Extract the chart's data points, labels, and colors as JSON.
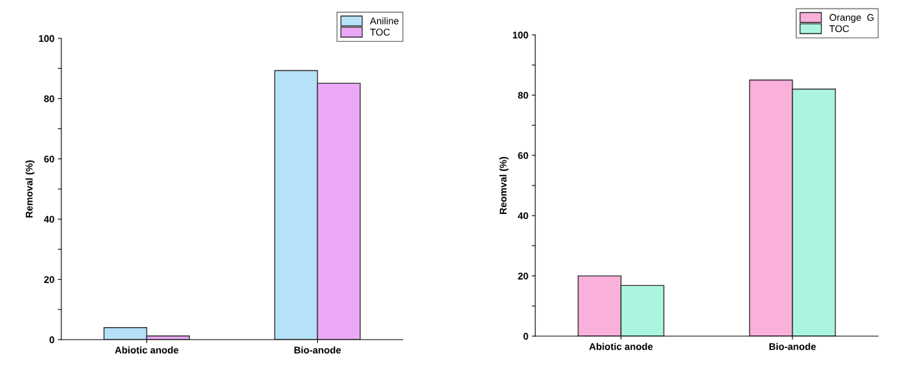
{
  "chart_data": [
    {
      "type": "bar",
      "ylabel": "Removal (%)",
      "categories": [
        "Abiotic anode",
        "Bio-anode"
      ],
      "series": [
        {
          "name": "Aniline",
          "color": "#b5e2f8",
          "values": [
            4.0,
            89.3
          ]
        },
        {
          "name": "TOC",
          "color": "#eaa8f6",
          "values": [
            1.2,
            85.1
          ]
        }
      ],
      "ylim": [
        0,
        100
      ],
      "yticks": [
        0,
        {
          "value": 10,
          "label": null
        },
        20,
        {
          "value": 30,
          "label": null
        },
        40,
        {
          "value": 50,
          "label": null
        },
        60,
        {
          "value": 70,
          "label": null
        },
        80,
        {
          "value": 90,
          "label": null
        },
        100
      ],
      "grid": false,
      "legend": "top right"
    },
    {
      "type": "bar",
      "ylabel": "Reomval (%)",
      "categories": [
        "Abiotic anode",
        "Bio-anode"
      ],
      "series": [
        {
          "name": "Orange  G",
          "color": "#f9b0da",
          "values": [
            20.0,
            85.0
          ]
        },
        {
          "name": "TOC",
          "color": "#abf5e0",
          "values": [
            16.8,
            82.0
          ]
        }
      ],
      "ylim": [
        0,
        100
      ],
      "yticks": [
        0,
        {
          "value": 10,
          "label": null
        },
        20,
        {
          "value": 30,
          "label": null
        },
        40,
        {
          "value": 50,
          "label": null
        },
        60,
        {
          "value": 70,
          "label": null
        },
        80,
        {
          "value": 90,
          "label": null
        },
        100
      ],
      "grid": false,
      "legend": "top right"
    }
  ]
}
